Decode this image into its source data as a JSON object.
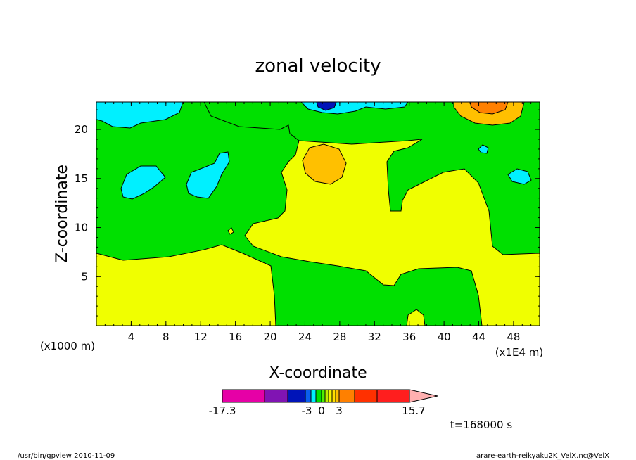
{
  "chart_data": {
    "type": "heatmap",
    "title": "zonal velocity",
    "xlabel": "X-coordinate",
    "ylabel": "Z-coordinate",
    "x_unit": "(x1E4 m)",
    "y_unit": "(x1000 m)",
    "x_ticks": [
      "4",
      "8",
      "12",
      "16",
      "20",
      "24",
      "28",
      "32",
      "36",
      "40",
      "44",
      "48"
    ],
    "y_ticks": [
      "5",
      "10",
      "15",
      "20"
    ],
    "xlim": [
      0,
      51
    ],
    "ylim": [
      0,
      22.8
    ],
    "grid": false,
    "legend": "colorbar-bottom",
    "colorbar": {
      "tick_labels": [
        "-17.3",
        "-3",
        "0",
        "3",
        "15.7"
      ],
      "colors": [
        "#e600a6",
        "#8014b3",
        "#0014b8",
        "#0a5ef0",
        "#00f0ff",
        "#00e000",
        "#50f000",
        "#bff000",
        "#f5f500",
        "#ffe000",
        "#ffc000",
        "#ff8000",
        "#ff3000",
        "#ff1e1e",
        "#ff8080",
        "#ffb0b0"
      ]
    },
    "region_colors": {
      "negative_strong": "#00f0ff",
      "negative_weak": "#00e000",
      "positive_weak": "#f0ff00",
      "positive_mid": "#ffc000",
      "positive_strong": "#ff8000",
      "negative_min": "#0014b8"
    },
    "annotations": [
      "t=168000 s"
    ]
  },
  "footer": {
    "left": "/usr/bin/gpview   2010-11-09",
    "right": "arare-earth-reikyaku2K_VelX.nc@VelX"
  }
}
